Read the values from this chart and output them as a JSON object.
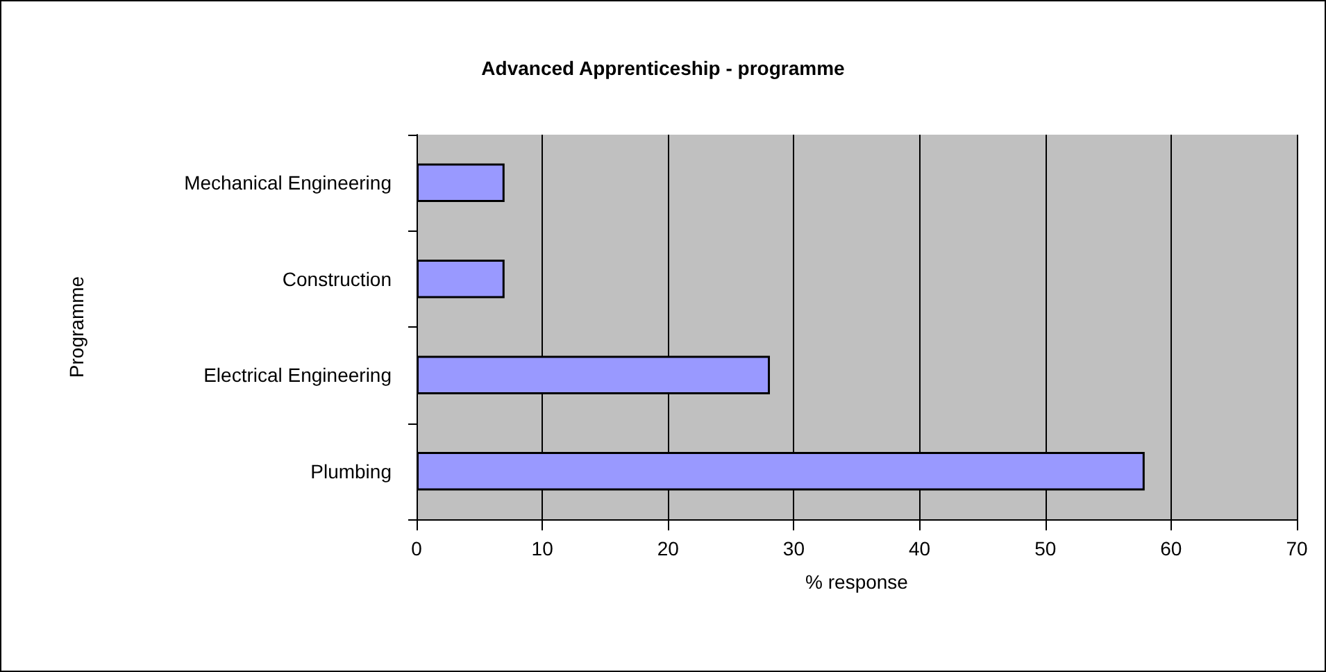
{
  "chart_data": {
    "type": "bar",
    "orientation": "horizontal",
    "title": "Advanced Apprenticeship - programme",
    "xlabel": "% response",
    "ylabel": "Programme",
    "categories": [
      "Mechanical Engineering",
      "Construction",
      "Electrical Engineering",
      "Plumbing"
    ],
    "values": [
      7.0,
      7.0,
      28.1,
      57.9
    ],
    "color": "#9999ff",
    "xlim": [
      0,
      70
    ],
    "xticks": [
      0,
      10,
      20,
      30,
      40,
      50,
      60,
      70
    ],
    "grid": "x"
  }
}
